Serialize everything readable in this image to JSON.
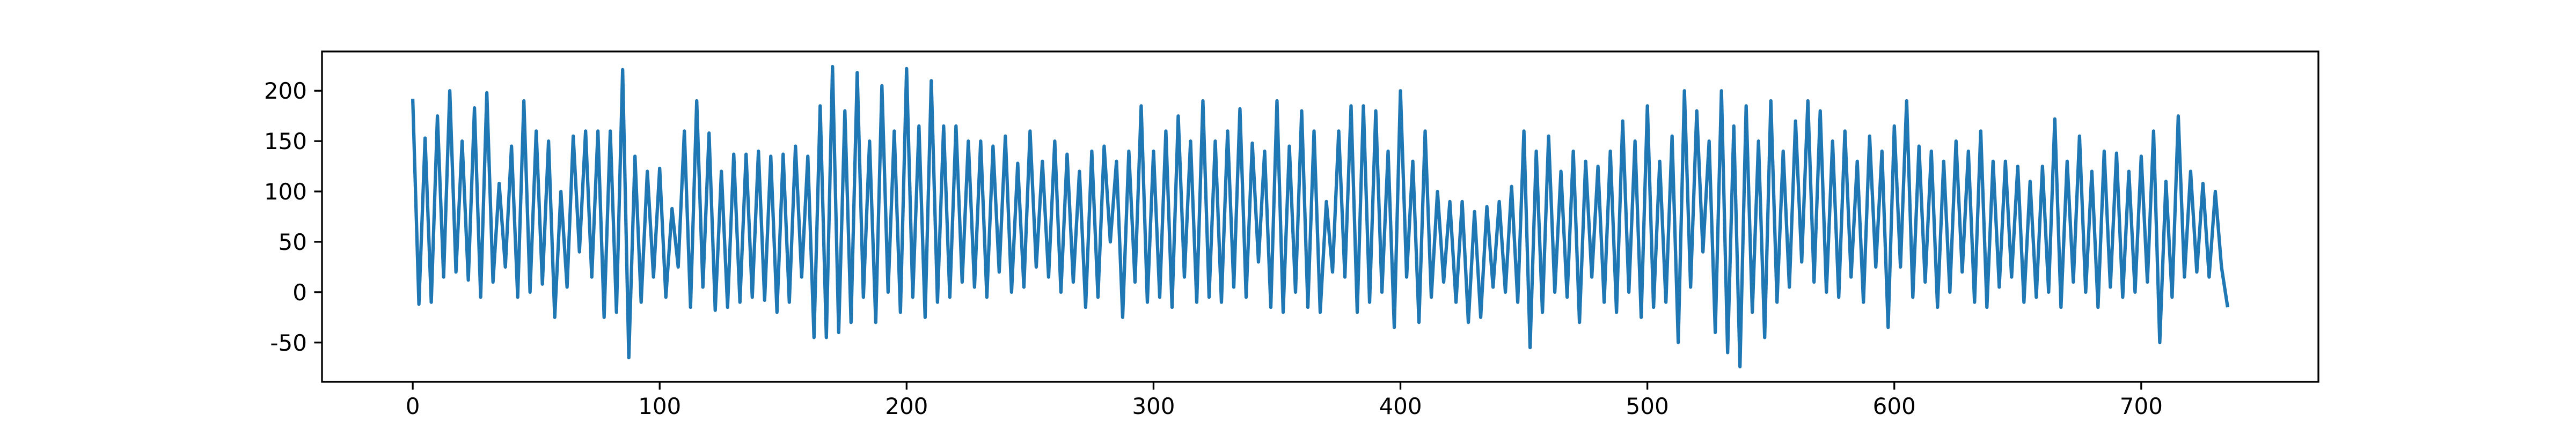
{
  "chart_data": {
    "type": "line",
    "x": [
      0,
      2.5,
      5,
      7.5,
      10,
      12.5,
      15,
      17.5,
      20,
      22.5,
      25,
      27.5,
      30,
      32.5,
      35,
      37.5,
      40,
      42.5,
      45,
      47.5,
      50,
      52.5,
      55,
      57.5,
      60,
      62.5,
      65,
      67.5,
      70,
      72.5,
      75,
      77.5,
      80,
      82.5,
      85,
      87.5,
      90,
      92.5,
      95,
      97.5,
      100,
      102.5,
      105,
      107.5,
      110,
      112.5,
      115,
      117.5,
      120,
      122.5,
      125,
      127.5,
      130,
      132.5,
      135,
      137.5,
      140,
      142.5,
      145,
      147.5,
      150,
      152.5,
      155,
      157.5,
      160,
      162.5,
      165,
      167.5,
      170,
      172.5,
      175,
      177.5,
      180,
      182.5,
      185,
      187.5,
      190,
      192.5,
      195,
      197.5,
      200,
      202.5,
      205,
      207.5,
      210,
      212.5,
      215,
      217.5,
      220,
      222.5,
      225,
      227.5,
      230,
      232.5,
      235,
      237.5,
      240,
      242.5,
      245,
      247.5,
      250,
      252.5,
      255,
      257.5,
      260,
      262.5,
      265,
      267.5,
      270,
      272.5,
      275,
      277.5,
      280,
      282.5,
      285,
      287.5,
      290,
      292.5,
      295,
      297.5,
      300,
      302.5,
      305,
      307.5,
      310,
      312.5,
      315,
      317.5,
      320,
      322.5,
      325,
      327.5,
      330,
      332.5,
      335,
      337.5,
      340,
      342.5,
      345,
      347.5,
      350,
      352.5,
      355,
      357.5,
      360,
      362.5,
      365,
      367.5,
      370,
      372.5,
      375,
      377.5,
      380,
      382.5,
      385,
      387.5,
      390,
      392.5,
      395,
      397.5,
      400,
      402.5,
      405,
      407.5,
      410,
      412.5,
      415,
      417.5,
      420,
      422.5,
      425,
      427.5,
      430,
      432.5,
      435,
      437.5,
      440,
      442.5,
      445,
      447.5,
      450,
      452.5,
      455,
      457.5,
      460,
      462.5,
      465,
      467.5,
      470,
      472.5,
      475,
      477.5,
      480,
      482.5,
      485,
      487.5,
      490,
      492.5,
      495,
      497.5,
      500,
      502.5,
      505,
      507.5,
      510,
      512.5,
      515,
      517.5,
      520,
      522.5,
      525,
      527.5,
      530,
      532.5,
      535,
      537.5,
      540,
      542.5,
      545,
      547.5,
      550,
      552.5,
      555,
      557.5,
      560,
      562.5,
      565,
      567.5,
      570,
      572.5,
      575,
      577.5,
      580,
      582.5,
      585,
      587.5,
      590,
      592.5,
      595,
      597.5,
      600,
      602.5,
      605,
      607.5,
      610,
      612.5,
      615,
      617.5,
      620,
      622.5,
      625,
      627.5,
      630,
      632.5,
      635,
      637.5,
      640,
      642.5,
      645,
      647.5,
      650,
      652.5,
      655,
      657.5,
      660,
      662.5,
      665,
      667.5,
      670,
      672.5,
      675,
      677.5,
      680,
      682.5,
      685,
      687.5,
      690,
      692.5,
      695,
      697.5,
      700,
      702.5,
      705,
      707.5,
      710,
      712.5,
      715,
      717.5,
      720,
      722.5,
      725,
      727.5,
      730,
      732.5,
      735
    ],
    "values": [
      192,
      -12,
      153,
      -10,
      175,
      15,
      200,
      20,
      150,
      12,
      183,
      -5,
      198,
      10,
      108,
      25,
      145,
      -5,
      190,
      0,
      160,
      8,
      150,
      -25,
      100,
      5,
      155,
      40,
      160,
      15,
      160,
      -25,
      160,
      -20,
      221,
      -65,
      135,
      -10,
      120,
      15,
      123,
      -5,
      83,
      25,
      160,
      -15,
      190,
      5,
      158,
      -18,
      120,
      -15,
      137,
      -10,
      137,
      -5,
      140,
      -8,
      135,
      -20,
      137,
      -10,
      145,
      15,
      135,
      -45,
      185,
      -45,
      224,
      -40,
      180,
      -30,
      218,
      -5,
      150,
      -30,
      205,
      0,
      160,
      -20,
      222,
      -5,
      165,
      -25,
      210,
      -10,
      165,
      -5,
      165,
      10,
      150,
      5,
      150,
      -5,
      145,
      20,
      155,
      0,
      128,
      5,
      160,
      25,
      130,
      15,
      150,
      0,
      137,
      10,
      120,
      -15,
      140,
      -5,
      145,
      50,
      130,
      -25,
      140,
      10,
      185,
      -10,
      140,
      -5,
      160,
      -15,
      175,
      15,
      150,
      -10,
      190,
      -5,
      150,
      -10,
      160,
      5,
      182,
      -5,
      148,
      30,
      140,
      -15,
      190,
      -20,
      145,
      0,
      180,
      -15,
      160,
      -20,
      90,
      20,
      160,
      15,
      185,
      -20,
      185,
      -10,
      180,
      0,
      140,
      -35,
      200,
      15,
      130,
      -30,
      160,
      -5,
      100,
      10,
      90,
      -10,
      90,
      -30,
      80,
      -25,
      85,
      5,
      90,
      0,
      105,
      -10,
      160,
      -55,
      140,
      -20,
      155,
      0,
      120,
      -5,
      140,
      -30,
      130,
      15,
      125,
      -10,
      140,
      -20,
      170,
      0,
      150,
      -25,
      185,
      -15,
      130,
      -10,
      155,
      -50,
      200,
      5,
      180,
      40,
      150,
      -40,
      200,
      -60,
      165,
      -74,
      185,
      -20,
      150,
      -45,
      190,
      -10,
      140,
      5,
      170,
      30,
      190,
      10,
      180,
      0,
      150,
      -5,
      160,
      15,
      130,
      -10,
      155,
      25,
      140,
      -35,
      165,
      25,
      190,
      -5,
      145,
      10,
      140,
      -15,
      130,
      0,
      150,
      20,
      140,
      -10,
      160,
      -15,
      130,
      5,
      130,
      15,
      125,
      -10,
      110,
      -5,
      125,
      0,
      172,
      -15,
      130,
      10,
      155,
      0,
      120,
      -15,
      140,
      5,
      138,
      -5,
      120,
      0,
      135,
      10,
      160,
      -50,
      110,
      -5,
      175,
      15,
      120,
      20,
      108,
      15,
      100,
      25,
      -15
    ],
    "color": "#1f77b4",
    "xlim": [
      -36.75,
      771.75
    ],
    "xticks": [
      0,
      100,
      200,
      300,
      400,
      500,
      600,
      700
    ],
    "ylim": [
      -89,
      239
    ],
    "yticks": [
      -50,
      0,
      50,
      100,
      150,
      200
    ]
  }
}
